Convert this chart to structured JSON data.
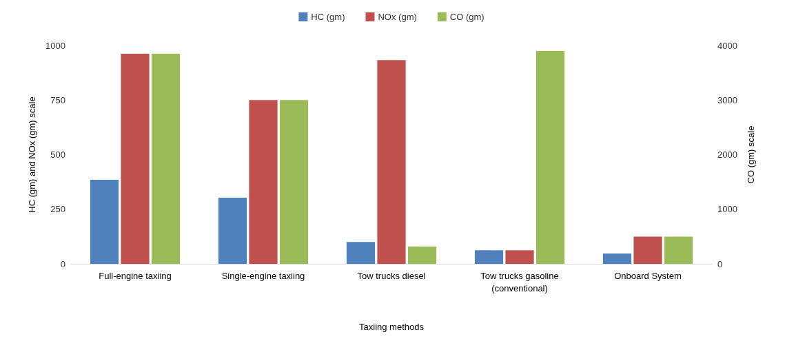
{
  "chart_data": {
    "type": "bar",
    "xlabel": "Taxiing methods",
    "ylabel": "HC (gm) and NOx (gm) scale",
    "y2label": "CO (gm) scale",
    "categories": [
      "Full-engine taxiing",
      "Single-engine taxiing",
      "Tow trucks diesel",
      "Tow trucks gasoline\n(conventional)",
      "Onboard System"
    ],
    "series": [
      {
        "name": "HC (gm)",
        "color": "#4f81bd",
        "values": [
          385,
          303,
          100,
          62,
          47
        ]
      },
      {
        "name": "NOx (gm)",
        "color": "#c0504d",
        "values": [
          962,
          750,
          933,
          62,
          125
        ]
      },
      {
        "name": "CO (gm)",
        "color": "#9bbb59",
        "axis": "y2",
        "values": [
          3850,
          3000,
          320,
          3900,
          500
        ]
      }
    ],
    "ylim": [
      0,
      1000
    ],
    "yticks": [
      0,
      250,
      500,
      750,
      1000
    ],
    "y2lim": [
      0,
      4000
    ],
    "y2ticks": [
      0,
      1000,
      2000,
      3000,
      4000
    ],
    "grid": false,
    "legend": "top"
  }
}
